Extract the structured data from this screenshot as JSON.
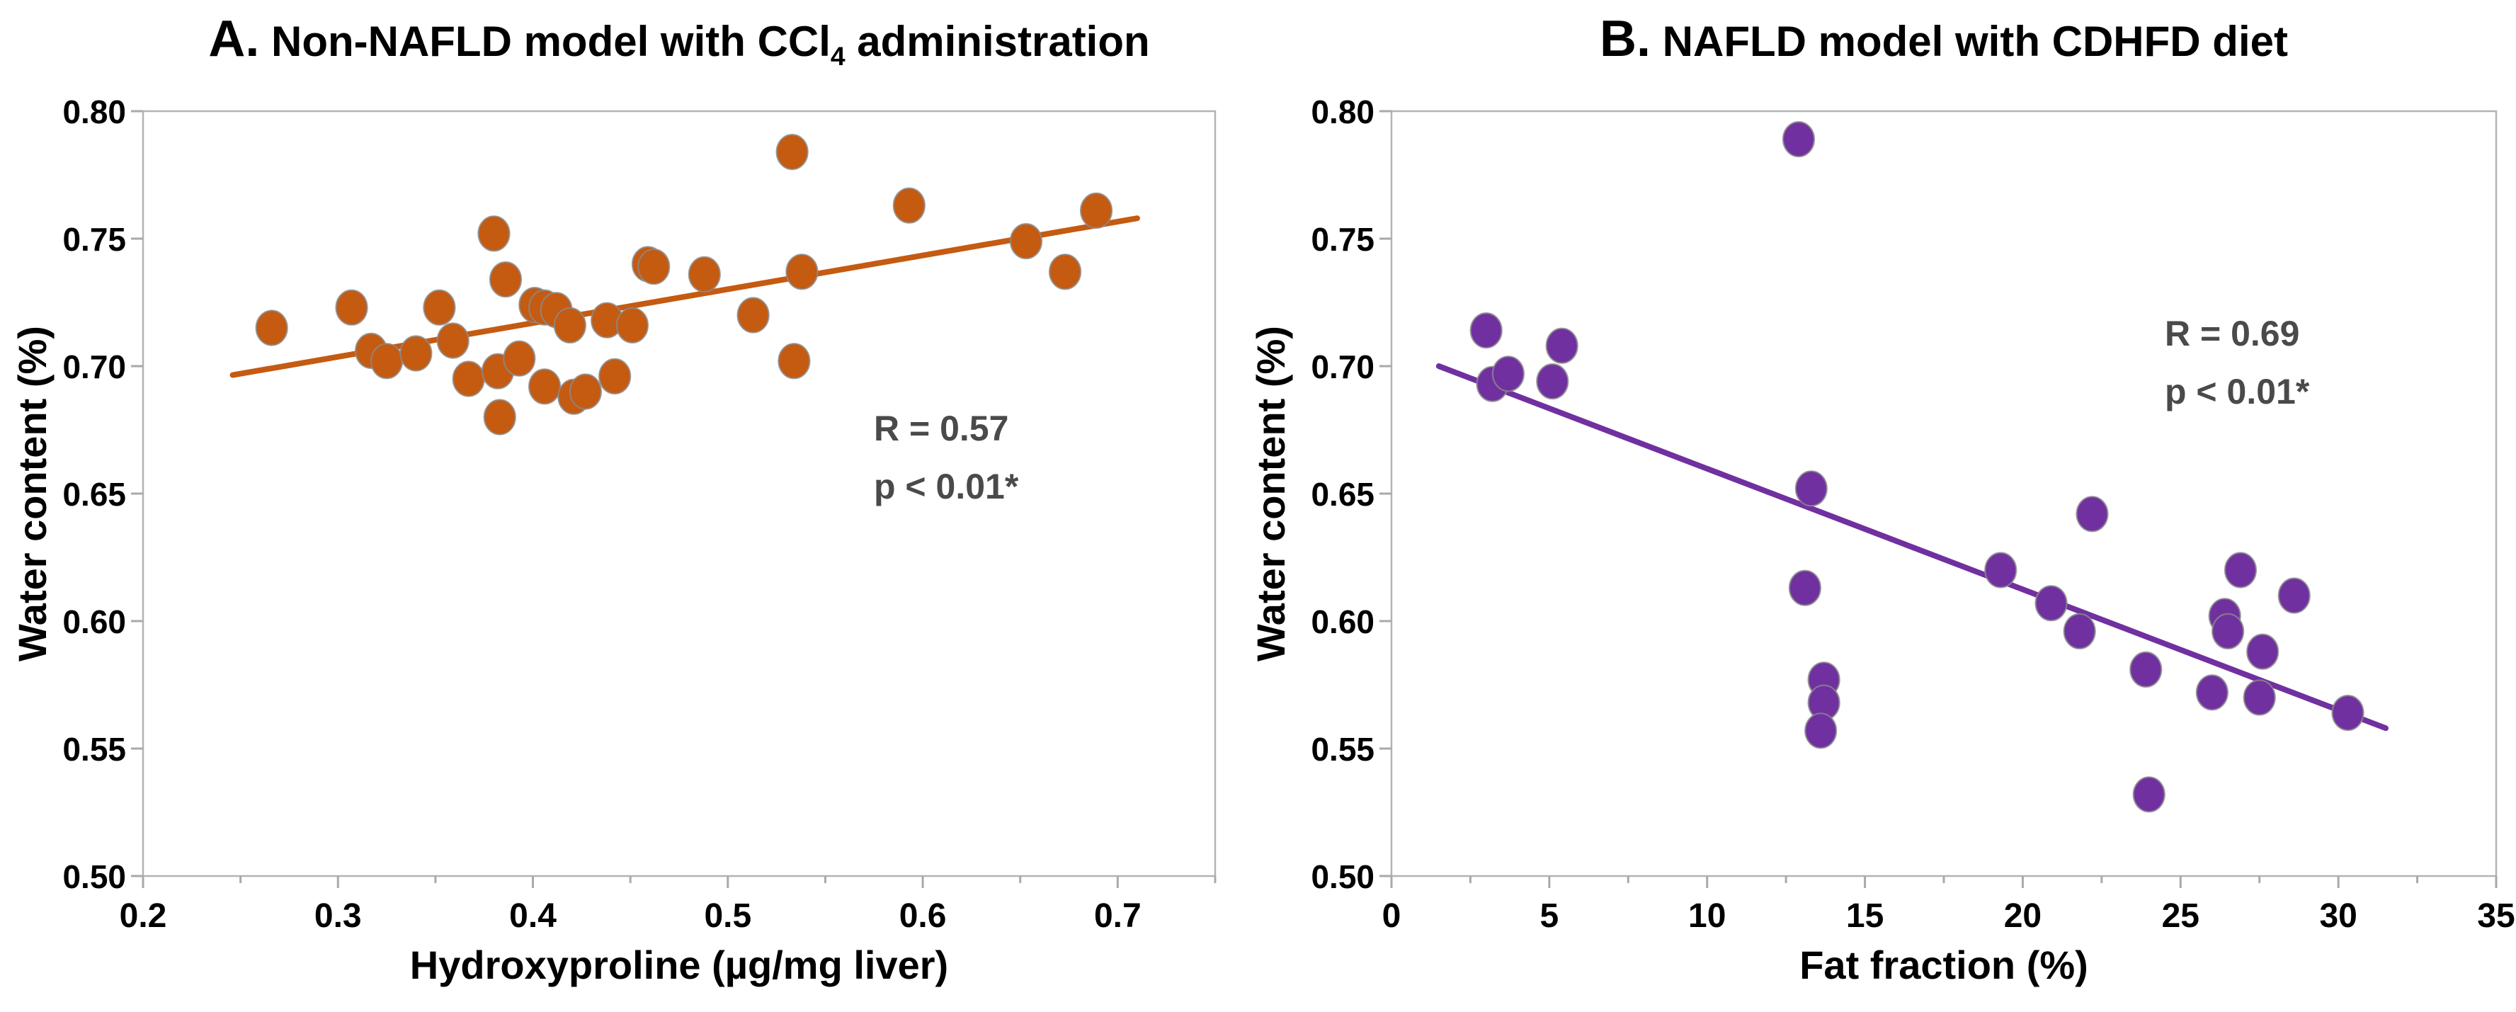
{
  "figure": {
    "kind": "two-panel scatter figure",
    "background": "#ffffff"
  },
  "chart_data": [
    {
      "id": "a",
      "type": "scatter",
      "title": "A. Non-NAFLD model with CCl4 administration",
      "title_parts": {
        "letter": "A.",
        "before": " Non-NAFLD model with CCl",
        "sub": "4",
        "after": " administration"
      },
      "xlabel": "Hydroxyproline (µg/mg liver)",
      "ylabel": "Water content (%)",
      "xlim": [
        0.2,
        0.75
      ],
      "ylim": [
        0.5,
        0.8
      ],
      "grid": false,
      "legend": null,
      "marker_color": "#C55A11",
      "marker_edge": "#8a8a8a",
      "line_color": "#C55A11",
      "xticks": [
        {
          "v": 0.2,
          "label": "0.2"
        },
        {
          "v": 0.3,
          "label": "0.3"
        },
        {
          "v": 0.4,
          "label": "0.4"
        },
        {
          "v": 0.5,
          "label": "0.5"
        },
        {
          "v": 0.6,
          "label": "0.6"
        },
        {
          "v": 0.7,
          "label": "0.7"
        }
      ],
      "xticks_minor": [
        0.25,
        0.35,
        0.45,
        0.55,
        0.65,
        0.75
      ],
      "yticks": [
        {
          "v": 0.8,
          "label": "0.80"
        },
        {
          "v": 0.75,
          "label": "0.75"
        },
        {
          "v": 0.7,
          "label": "0.70"
        },
        {
          "v": 0.65,
          "label": "0.65"
        },
        {
          "v": 0.6,
          "label": "0.60"
        },
        {
          "v": 0.55,
          "label": "0.55"
        },
        {
          "v": 0.5,
          "label": "0.50"
        }
      ],
      "points": [
        [
          0.266,
          0.715
        ],
        [
          0.307,
          0.723
        ],
        [
          0.317,
          0.706
        ],
        [
          0.325,
          0.702
        ],
        [
          0.34,
          0.705
        ],
        [
          0.352,
          0.723
        ],
        [
          0.359,
          0.71
        ],
        [
          0.367,
          0.695
        ],
        [
          0.38,
          0.752
        ],
        [
          0.382,
          0.698
        ],
        [
          0.383,
          0.68
        ],
        [
          0.386,
          0.734
        ],
        [
          0.393,
          0.703
        ],
        [
          0.401,
          0.724
        ],
        [
          0.406,
          0.723
        ],
        [
          0.406,
          0.692
        ],
        [
          0.412,
          0.722
        ],
        [
          0.419,
          0.716
        ],
        [
          0.421,
          0.688
        ],
        [
          0.427,
          0.69
        ],
        [
          0.438,
          0.718
        ],
        [
          0.442,
          0.696
        ],
        [
          0.451,
          0.716
        ],
        [
          0.459,
          0.74
        ],
        [
          0.462,
          0.739
        ],
        [
          0.488,
          0.736
        ],
        [
          0.513,
          0.72
        ],
        [
          0.533,
          0.784
        ],
        [
          0.534,
          0.702
        ],
        [
          0.538,
          0.737
        ],
        [
          0.593,
          0.763
        ],
        [
          0.653,
          0.749
        ],
        [
          0.673,
          0.737
        ],
        [
          0.689,
          0.761
        ]
      ],
      "trend": {
        "x1": 0.246,
        "y1": 0.6965,
        "x2": 0.71,
        "y2": 0.758
      },
      "annotation": {
        "lines": [
          "R = 0.57",
          "p < 0.01*"
        ],
        "x": 0.575,
        "y": 0.684,
        "color": "#4a4a4a"
      }
    },
    {
      "id": "b",
      "type": "scatter",
      "title": "B. NAFLD model with CDHFD diet",
      "title_parts": {
        "letter": "B.",
        "before": " NAFLD model with CDHFD diet",
        "sub": "",
        "after": ""
      },
      "xlabel": "Fat fraction (%)",
      "ylabel": "Water content (%)",
      "xlim": [
        0,
        35
      ],
      "ylim": [
        0.5,
        0.8
      ],
      "grid": false,
      "legend": null,
      "marker_color": "#7030A0",
      "marker_edge": "#8a8a8a",
      "line_color": "#7030A0",
      "xticks": [
        {
          "v": 0,
          "label": "0"
        },
        {
          "v": 5,
          "label": "5"
        },
        {
          "v": 10,
          "label": "10"
        },
        {
          "v": 15,
          "label": "15"
        },
        {
          "v": 20,
          "label": "20"
        },
        {
          "v": 25,
          "label": "25"
        },
        {
          "v": 30,
          "label": "30"
        },
        {
          "v": 35,
          "label": "35"
        }
      ],
      "xticks_minor": [
        2.5,
        7.5,
        12.5,
        17.5,
        22.5,
        27.5,
        32.5
      ],
      "yticks": [
        {
          "v": 0.8,
          "label": "0.80"
        },
        {
          "v": 0.75,
          "label": "0.75"
        },
        {
          "v": 0.7,
          "label": "0.70"
        },
        {
          "v": 0.65,
          "label": "0.65"
        },
        {
          "v": 0.6,
          "label": "0.60"
        },
        {
          "v": 0.55,
          "label": "0.55"
        },
        {
          "v": 0.5,
          "label": "0.50"
        }
      ],
      "points": [
        [
          3.0,
          0.714
        ],
        [
          3.2,
          0.693
        ],
        [
          3.7,
          0.697
        ],
        [
          5.1,
          0.694
        ],
        [
          5.4,
          0.708
        ],
        [
          12.9,
          0.789
        ],
        [
          13.3,
          0.652
        ],
        [
          13.1,
          0.613
        ],
        [
          13.7,
          0.577
        ],
        [
          13.7,
          0.568
        ],
        [
          13.6,
          0.557
        ],
        [
          19.3,
          0.62
        ],
        [
          20.9,
          0.607
        ],
        [
          21.8,
          0.596
        ],
        [
          22.2,
          0.642
        ],
        [
          23.9,
          0.581
        ],
        [
          24.0,
          0.532
        ],
        [
          26.0,
          0.572
        ],
        [
          26.4,
          0.602
        ],
        [
          26.5,
          0.596
        ],
        [
          26.9,
          0.62
        ],
        [
          27.5,
          0.57
        ],
        [
          27.6,
          0.588
        ],
        [
          28.6,
          0.61
        ],
        [
          30.3,
          0.564
        ]
      ],
      "trend": {
        "x1": 1.5,
        "y1": 0.7,
        "x2": 31.5,
        "y2": 0.558
      },
      "annotation": {
        "lines": [
          "R = 0.69",
          "p < 0.01*"
        ],
        "x": 24.5,
        "y": 0.721,
        "color": "#4a4a4a"
      }
    }
  ]
}
